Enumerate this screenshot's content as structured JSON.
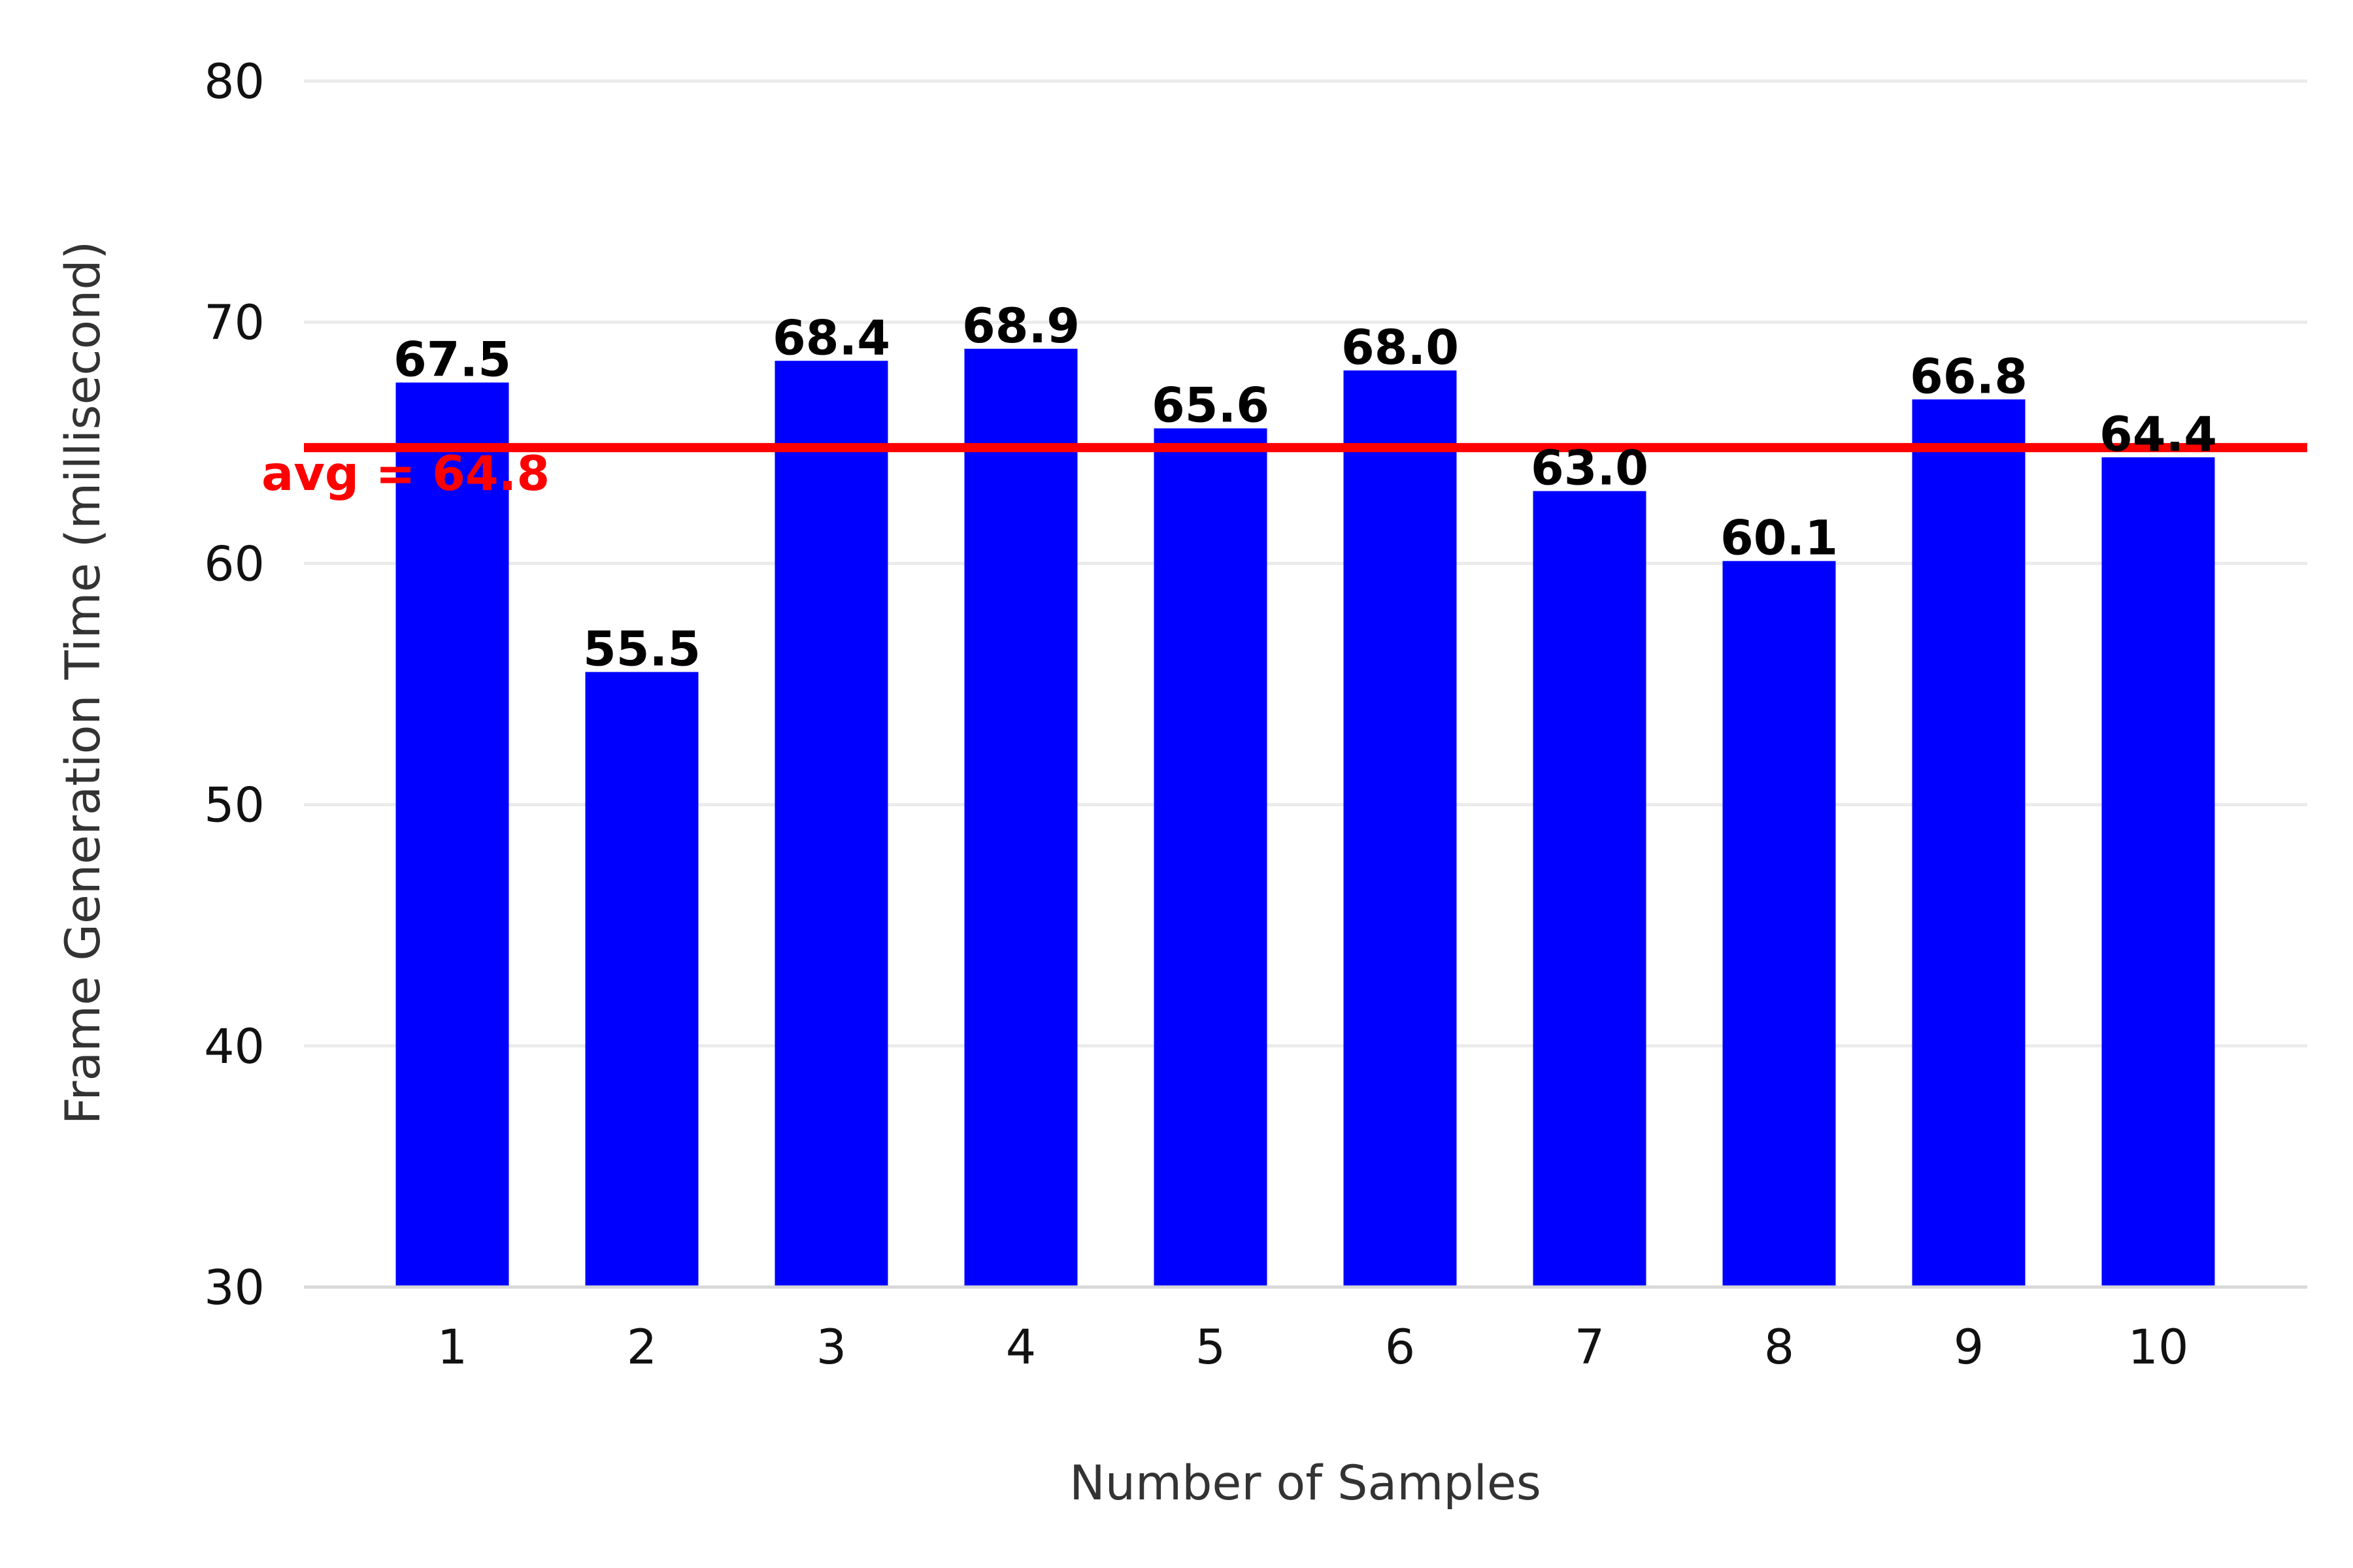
{
  "chart_data": {
    "type": "bar",
    "title": "",
    "xlabel": "Number of Samples",
    "ylabel": "Frame Generation Time (millisecond)",
    "categories": [
      "1",
      "2",
      "3",
      "4",
      "5",
      "6",
      "7",
      "8",
      "9",
      "10"
    ],
    "values": [
      67.5,
      55.5,
      68.4,
      68.9,
      65.6,
      68.0,
      63.0,
      60.1,
      66.8,
      64.4
    ],
    "data_labels": [
      "67.5",
      "55.5",
      "68.4",
      "68.9",
      "65.6",
      "68.0",
      "63.0",
      "60.1",
      "66.8",
      "64.4"
    ],
    "ylim": [
      30,
      80
    ],
    "yticks": [
      30,
      40,
      50,
      60,
      70,
      80
    ],
    "grid": true,
    "bar_color": "#0000ff",
    "average": {
      "value": 64.8,
      "label": "avg = 64.8",
      "color": "#ff0000"
    }
  }
}
